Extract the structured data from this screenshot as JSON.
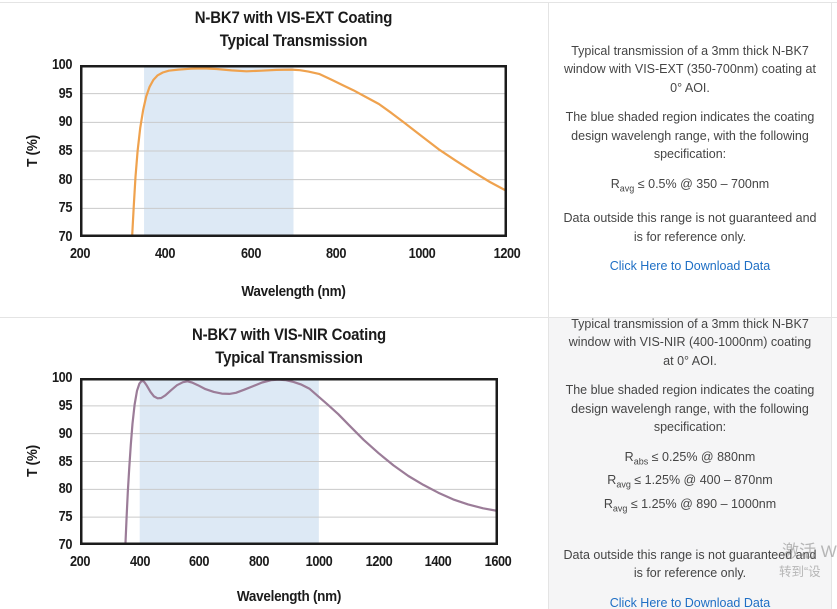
{
  "chart_data": [
    {
      "type": "line",
      "title": "N-BK7 with VIS-EXT Coating",
      "subtitle": "Typical Transmission",
      "xlabel": "Wavelength (nm)",
      "ylabel": "T (%)",
      "xlim": [
        200,
        1200
      ],
      "ylim": [
        70,
        100
      ],
      "xticks": [
        200,
        400,
        600,
        800,
        1000,
        1200
      ],
      "yticks": [
        100,
        95,
        90,
        85,
        80,
        75,
        70
      ],
      "grid": "horizontal",
      "legend": "none",
      "shaded_region": {
        "from": 350,
        "to": 700,
        "color": "#dde9f5"
      },
      "line_color": "#efa24e",
      "series": [
        {
          "name": "Transmission",
          "points": [
            [
              322,
              70
            ],
            [
              326,
              75.5
            ],
            [
              330,
              80.5
            ],
            [
              335,
              85
            ],
            [
              341,
              89
            ],
            [
              348,
              92.2
            ],
            [
              355,
              94.5
            ],
            [
              363,
              96.2
            ],
            [
              372,
              97.4
            ],
            [
              382,
              98.2
            ],
            [
              394,
              98.7
            ],
            [
              408,
              99.0
            ],
            [
              430,
              99.2
            ],
            [
              460,
              99.35
            ],
            [
              490,
              99.4
            ],
            [
              520,
              99.3
            ],
            [
              555,
              99.05
            ],
            [
              590,
              98.9
            ],
            [
              625,
              99.0
            ],
            [
              660,
              99.15
            ],
            [
              695,
              99.2
            ],
            [
              715,
              99.1
            ],
            [
              735,
              98.85
            ],
            [
              760,
              98.45
            ],
            [
              790,
              97.4
            ],
            [
              815,
              96.5
            ],
            [
              840,
              95.6
            ],
            [
              870,
              94.4
            ],
            [
              900,
              93.2
            ],
            [
              930,
              91.6
            ],
            [
              960,
              89.9
            ],
            [
              1000,
              87.6
            ],
            [
              1040,
              85.3
            ],
            [
              1080,
              83.3
            ],
            [
              1120,
              81.4
            ],
            [
              1160,
              79.6
            ],
            [
              1200,
              78.0
            ]
          ]
        }
      ]
    },
    {
      "type": "line",
      "title": "N-BK7 with VIS-NIR Coating",
      "subtitle": "Typical Transmission",
      "xlabel": "Wavelength (nm)",
      "ylabel": "T (%)",
      "xlim": [
        200,
        1600
      ],
      "ylim": [
        70,
        100
      ],
      "xticks": [
        200,
        400,
        600,
        800,
        1000,
        1200,
        1400,
        1600
      ],
      "yticks": [
        100,
        95,
        90,
        85,
        80,
        75,
        70
      ],
      "grid": "horizontal",
      "legend": "none",
      "shaded_region": {
        "from": 400,
        "to": 1000,
        "color": "#dde9f5"
      },
      "line_color": "#9b7c98",
      "series": [
        {
          "name": "Transmission",
          "points": [
            [
              352,
              70
            ],
            [
              356,
              75
            ],
            [
              360,
              79.5
            ],
            [
              365,
              84
            ],
            [
              370,
              88
            ],
            [
              376,
              91.8
            ],
            [
              383,
              95.2
            ],
            [
              391,
              97.7
            ],
            [
              399,
              99.0
            ],
            [
              407,
              99.5
            ],
            [
              415,
              99.3
            ],
            [
              424,
              98.6
            ],
            [
              436,
              97.5
            ],
            [
              448,
              96.7
            ],
            [
              460,
              96.35
            ],
            [
              472,
              96.4
            ],
            [
              486,
              96.9
            ],
            [
              505,
              97.8
            ],
            [
              525,
              98.7
            ],
            [
              545,
              99.25
            ],
            [
              560,
              99.4
            ],
            [
              575,
              99.2
            ],
            [
              595,
              98.7
            ],
            [
              620,
              98.0
            ],
            [
              648,
              97.5
            ],
            [
              675,
              97.2
            ],
            [
              700,
              97.15
            ],
            [
              722,
              97.35
            ],
            [
              750,
              97.9
            ],
            [
              780,
              98.55
            ],
            [
              810,
              99.2
            ],
            [
              840,
              99.6
            ],
            [
              865,
              99.72
            ],
            [
              890,
              99.6
            ],
            [
              915,
              99.3
            ],
            [
              940,
              98.85
            ],
            [
              968,
              98.1
            ],
            [
              1000,
              96.6
            ],
            [
              1030,
              95.2
            ],
            [
              1065,
              93.5
            ],
            [
              1100,
              91.6
            ],
            [
              1150,
              88.9
            ],
            [
              1200,
              86.5
            ],
            [
              1250,
              84.3
            ],
            [
              1300,
              82.4
            ],
            [
              1350,
              80.8
            ],
            [
              1400,
              79.4
            ],
            [
              1450,
              78.2
            ],
            [
              1500,
              77.3
            ],
            [
              1550,
              76.6
            ],
            [
              1600,
              76.1
            ]
          ]
        }
      ]
    }
  ],
  "panels": [
    {
      "para1": "Typical transmission of a 3mm thick N-BK7 window with VIS-EXT (350-700nm) coating at 0° AOI.",
      "para2": "The blue shaded region indicates the coating design wavelengh range, with the following specification:",
      "specs": [
        {
          "prefix": "R",
          "sub": "avg",
          "text": " ≤ 0.5% @ 350 – 700nm"
        }
      ],
      "para3": "Data outside this range is not guaranteed and is for reference only.",
      "link": "Click Here to Download Data"
    },
    {
      "para1": "Typical transmission of a 3mm thick N-BK7 window with VIS-NIR (400-1000nm) coating at 0° AOI.",
      "para2": "The blue shaded region indicates the coating design wavelengh range, with the following specification:",
      "specs": [
        {
          "prefix": "R",
          "sub": "abs",
          "text": " ≤ 0.25% @ 880nm"
        },
        {
          "prefix": "R",
          "sub": "avg",
          "text": " ≤ 1.25% @ 400 – 870nm"
        },
        {
          "prefix": "R",
          "sub": "avg",
          "text": " ≤ 1.25% @ 890 – 1000nm"
        }
      ],
      "para3": "Data outside this range is not guaranteed and is for reference only.",
      "link": "Click Here to Download Data"
    }
  ],
  "watermark": {
    "line1": "激活 W",
    "line2": "转到“设"
  },
  "colors": {
    "link": "#1e6fc5",
    "orange_curve": "#efa24e",
    "purple_curve": "#9b7c98",
    "shaded_blue": "#dde9f5",
    "gridline": "#cacaca",
    "plot_border": "#1c1c1c",
    "panel_gray": "#f5f5f6",
    "divider": "#e4e4e4"
  }
}
